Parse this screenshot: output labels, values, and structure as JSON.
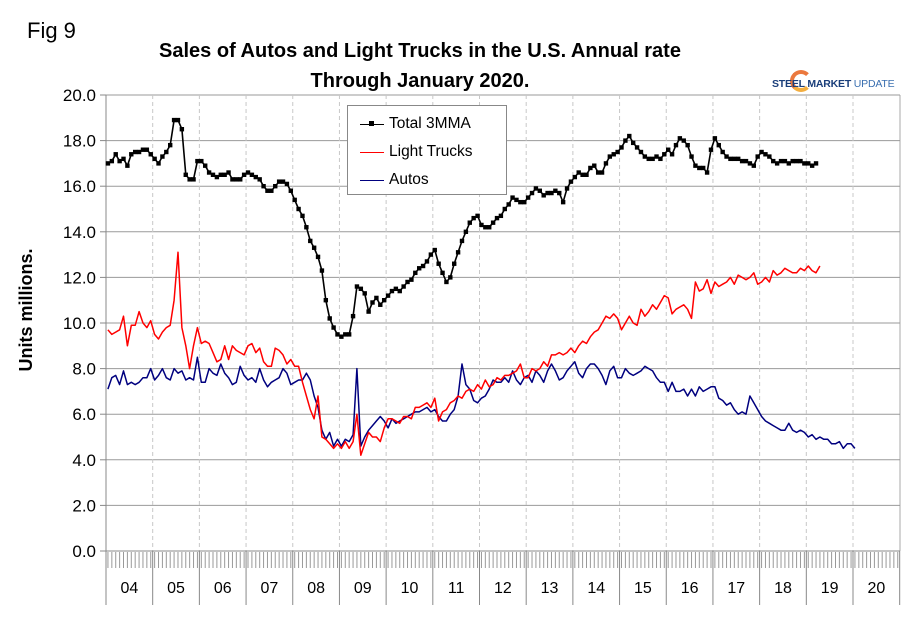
{
  "figure_label": "Fig 9",
  "logo": {
    "bold": "STEEL MARKET",
    "thin": " UPDATE"
  },
  "chart_data": {
    "type": "line",
    "title": "Sales of Autos and Light Trucks in the U.S. Annual rate",
    "subtitle": "Through January 2020.",
    "xlabel": "",
    "ylabel": "Units millions.",
    "ylim": [
      0,
      20
    ],
    "yticks": [
      "0.0",
      "2.0",
      "4.0",
      "6.0",
      "8.0",
      "10.0",
      "12.0",
      "14.0",
      "16.0",
      "18.0",
      "20.0"
    ],
    "x_categories": [
      "04",
      "05",
      "06",
      "07",
      "08",
      "09",
      "10",
      "11",
      "12",
      "13",
      "14",
      "15",
      "16",
      "17",
      "18",
      "19",
      "20"
    ],
    "x_start": "2004-01",
    "x_end": "2020-01",
    "frequency": "monthly",
    "grid": true,
    "legend_position": "top-center",
    "series": [
      {
        "name": "Total 3MMA",
        "color": "#000000",
        "marker": "square",
        "values": [
          17.0,
          17.1,
          17.4,
          17.1,
          17.2,
          16.9,
          17.4,
          17.5,
          17.5,
          17.6,
          17.6,
          17.4,
          17.2,
          17.0,
          17.3,
          17.5,
          17.8,
          18.9,
          18.9,
          18.5,
          16.5,
          16.3,
          16.3,
          17.1,
          17.1,
          16.9,
          16.6,
          16.5,
          16.4,
          16.5,
          16.5,
          16.6,
          16.3,
          16.3,
          16.3,
          16.5,
          16.6,
          16.5,
          16.4,
          16.3,
          16.0,
          15.8,
          15.8,
          16.0,
          16.2,
          16.2,
          16.1,
          15.8,
          15.4,
          15.0,
          14.7,
          14.2,
          13.6,
          13.3,
          12.9,
          12.3,
          11.0,
          10.2,
          9.8,
          9.5,
          9.4,
          9.5,
          9.5,
          10.3,
          11.6,
          11.5,
          11.3,
          10.5,
          10.9,
          11.1,
          10.8,
          11.0,
          11.2,
          11.4,
          11.5,
          11.4,
          11.6,
          11.8,
          11.9,
          12.2,
          12.4,
          12.5,
          12.7,
          13.0,
          13.2,
          12.6,
          12.2,
          11.8,
          12.0,
          12.6,
          13.1,
          13.6,
          14.0,
          14.4,
          14.6,
          14.7,
          14.3,
          14.2,
          14.2,
          14.4,
          14.6,
          14.7,
          15.0,
          15.2,
          15.5,
          15.4,
          15.3,
          15.3,
          15.5,
          15.7,
          15.9,
          15.8,
          15.6,
          15.7,
          15.7,
          15.8,
          15.7,
          15.3,
          15.9,
          16.2,
          16.4,
          16.6,
          16.5,
          16.5,
          16.8,
          16.9,
          16.6,
          16.6,
          17.0,
          17.3,
          17.4,
          17.5,
          17.7,
          18.0,
          18.2,
          17.9,
          17.7,
          17.5,
          17.3,
          17.2,
          17.2,
          17.3,
          17.2,
          17.4,
          17.6,
          17.4,
          17.8,
          18.1,
          18.0,
          17.8,
          17.3,
          16.9,
          16.8,
          16.8,
          16.6,
          17.6,
          18.1,
          17.8,
          17.5,
          17.3,
          17.2,
          17.2,
          17.2,
          17.1,
          17.1,
          17.0,
          16.9,
          17.3,
          17.5,
          17.4,
          17.3,
          17.1,
          17.0,
          17.1,
          17.1,
          17.0,
          17.1,
          17.1,
          17.1,
          17.0,
          17.0,
          16.9,
          17.0
        ]
      },
      {
        "name": "Light Trucks",
        "color": "#ff0000",
        "marker": "none",
        "values": [
          9.7,
          9.5,
          9.6,
          9.7,
          10.3,
          9.0,
          9.9,
          9.9,
          10.5,
          10.0,
          9.8,
          10.1,
          9.5,
          9.3,
          9.6,
          9.8,
          9.9,
          11.0,
          13.1,
          9.8,
          9.0,
          8.0,
          9.0,
          9.8,
          9.1,
          9.2,
          9.1,
          8.7,
          8.3,
          8.4,
          9.0,
          8.4,
          9.0,
          8.8,
          8.7,
          8.6,
          9.0,
          9.1,
          8.7,
          8.9,
          8.3,
          8.1,
          8.1,
          8.9,
          8.8,
          8.6,
          8.2,
          8.4,
          8.1,
          8.1,
          7.4,
          6.8,
          6.2,
          5.8,
          6.8,
          5.0,
          4.9,
          4.7,
          4.5,
          4.7,
          4.5,
          4.8,
          4.5,
          4.8,
          6.0,
          4.2,
          4.7,
          5.2,
          5.0,
          5.0,
          4.8,
          5.4,
          5.8,
          5.8,
          5.7,
          5.6,
          5.9,
          5.9,
          5.8,
          6.3,
          6.3,
          6.4,
          6.5,
          6.3,
          6.7,
          5.7,
          6.1,
          6.2,
          6.5,
          6.6,
          6.8,
          6.7,
          7.0,
          7.1,
          7.0,
          7.3,
          7.1,
          7.5,
          7.2,
          7.3,
          7.6,
          7.5,
          7.7,
          7.7,
          7.8,
          7.9,
          8.2,
          7.6,
          7.6,
          8.0,
          7.9,
          8.0,
          8.3,
          8.1,
          8.6,
          8.6,
          8.7,
          8.6,
          8.7,
          8.9,
          8.7,
          9.0,
          9.2,
          9.1,
          9.4,
          9.6,
          9.7,
          10.0,
          10.3,
          10.2,
          10.4,
          10.2,
          9.7,
          10.0,
          10.3,
          10.0,
          9.9,
          10.6,
          10.3,
          10.5,
          10.8,
          10.6,
          10.9,
          11.2,
          11.1,
          10.4,
          10.6,
          10.7,
          10.8,
          10.6,
          10.2,
          11.8,
          11.4,
          11.5,
          11.9,
          11.3,
          11.8,
          11.6,
          11.7,
          11.8,
          12.0,
          11.7,
          12.1,
          12.0,
          11.9,
          12.0,
          12.2,
          11.7,
          11.8,
          12.0,
          11.8,
          12.3,
          12.1,
          12.2,
          12.4,
          12.3,
          12.2,
          12.2,
          12.4,
          12.3,
          12.5,
          12.3,
          12.2,
          12.5
        ]
      },
      {
        "name": "Autos",
        "color": "#00007f",
        "marker": "none",
        "values": [
          7.1,
          7.6,
          7.7,
          7.3,
          7.9,
          7.3,
          7.4,
          7.3,
          7.4,
          7.6,
          7.6,
          8.0,
          7.5,
          7.7,
          8.0,
          7.6,
          7.5,
          8.0,
          7.8,
          7.9,
          7.5,
          7.6,
          7.5,
          8.5,
          7.4,
          7.4,
          8.0,
          7.8,
          7.7,
          8.2,
          7.8,
          7.6,
          7.3,
          7.4,
          8.1,
          7.7,
          7.5,
          7.6,
          7.4,
          8.0,
          7.5,
          7.2,
          7.4,
          7.5,
          7.6,
          8.0,
          7.8,
          7.3,
          7.4,
          7.5,
          7.5,
          7.8,
          7.5,
          6.8,
          6.3,
          5.3,
          4.9,
          5.2,
          4.6,
          4.9,
          4.6,
          4.9,
          4.8,
          5.1,
          8.0,
          4.6,
          5.0,
          5.3,
          5.5,
          5.7,
          5.9,
          5.7,
          5.4,
          5.8,
          5.6,
          5.7,
          5.8,
          5.9,
          6.0,
          6.1,
          6.1,
          6.2,
          6.3,
          6.1,
          6.2,
          5.9,
          5.7,
          5.7,
          6.0,
          6.2,
          6.8,
          8.2,
          7.3,
          7.1,
          6.6,
          6.5,
          6.7,
          6.8,
          7.1,
          7.5,
          7.4,
          7.4,
          7.6,
          7.4,
          7.9,
          7.5,
          7.3,
          7.6,
          7.7,
          7.4,
          7.9,
          7.7,
          7.4,
          7.9,
          8.2,
          7.9,
          7.5,
          7.6,
          7.9,
          8.1,
          8.3,
          7.8,
          7.6,
          8.0,
          8.2,
          8.2,
          8.0,
          7.7,
          7.3,
          7.9,
          8.1,
          7.6,
          7.6,
          8.0,
          7.8,
          7.7,
          7.8,
          7.9,
          8.1,
          8.0,
          7.9,
          7.6,
          7.4,
          7.4,
          7.0,
          7.4,
          7.0,
          7.0,
          7.1,
          6.8,
          7.1,
          6.8,
          7.2,
          7.0,
          7.1,
          7.2,
          7.2,
          6.7,
          6.6,
          6.4,
          6.5,
          6.2,
          6.0,
          6.1,
          6.0,
          6.8,
          6.5,
          6.2,
          5.9,
          5.7,
          5.6,
          5.5,
          5.4,
          5.3,
          5.3,
          5.6,
          5.3,
          5.2,
          5.3,
          5.2,
          5.0,
          5.1,
          4.9,
          5.0,
          4.9,
          4.9,
          4.7,
          4.7,
          4.8,
          4.5,
          4.7,
          4.7,
          4.5
        ]
      }
    ]
  }
}
